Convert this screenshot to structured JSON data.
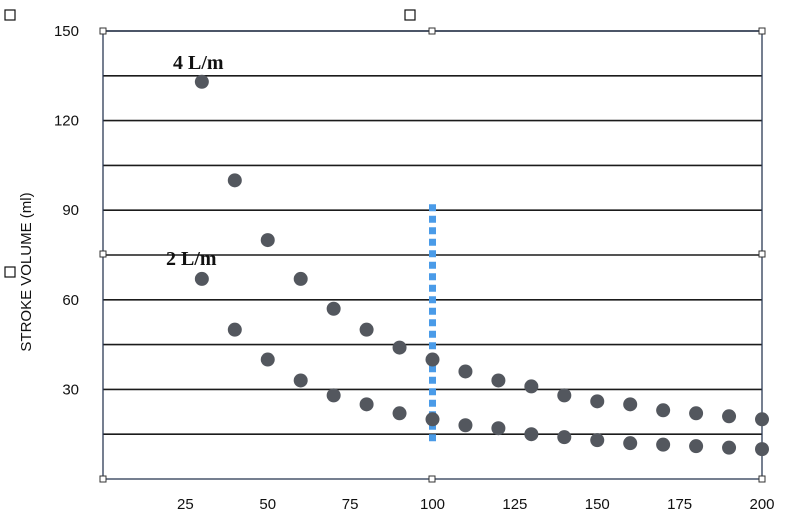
{
  "chart_data": {
    "type": "scatter",
    "ylabel": "STROKE VOLUME  (ml)",
    "xlabel": "",
    "xlim": [
      0,
      200
    ],
    "ylim": [
      0,
      150
    ],
    "x_ticks": [
      25,
      50,
      75,
      100,
      125,
      150,
      175,
      200
    ],
    "y_ticks": [
      30,
      60,
      90,
      120,
      150
    ],
    "gridlines_y": [
      15,
      30,
      45,
      60,
      75,
      90,
      105,
      120,
      135,
      150
    ],
    "grid": "horizontal",
    "marker_color": "#53575e",
    "marker_line_color": "#4a9be8",
    "marker_line_x": 100,
    "marker_line_range": [
      12,
      92
    ],
    "series": [
      {
        "name": "4 L/m",
        "x": [
          30,
          40,
          50,
          60,
          70,
          80,
          90,
          100,
          110,
          120,
          130,
          140,
          150,
          160,
          170,
          180,
          190,
          200
        ],
        "y": [
          133,
          100,
          80,
          67,
          57,
          50,
          44,
          40,
          36,
          33,
          31,
          28,
          26,
          25,
          23,
          22,
          21,
          20
        ]
      },
      {
        "name": "2 L/m",
        "x": [
          30,
          40,
          50,
          60,
          70,
          80,
          90,
          100,
          110,
          120,
          130,
          140,
          150,
          160,
          170,
          180,
          190,
          200
        ],
        "y": [
          67,
          50,
          40,
          33,
          28,
          25,
          22,
          20,
          18,
          17,
          15,
          14,
          13,
          12,
          11.5,
          11,
          10.5,
          10
        ]
      }
    ]
  }
}
